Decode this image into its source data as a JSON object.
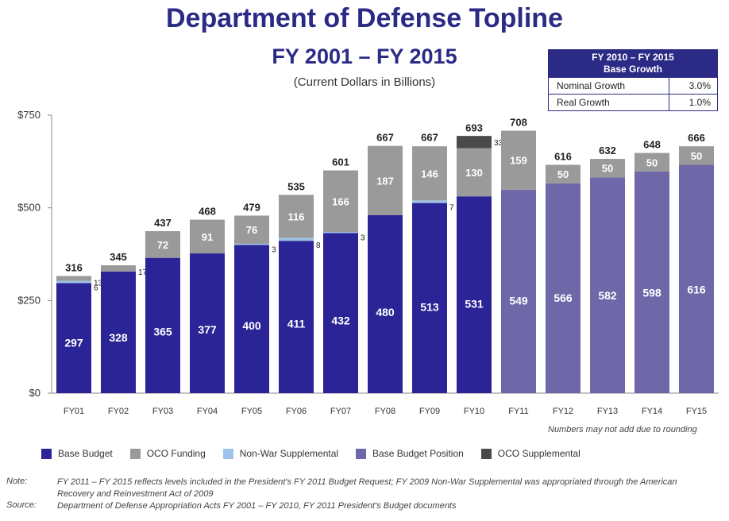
{
  "chart_data": {
    "type": "bar",
    "title": "Department of Defense Topline",
    "subtitle": "FY 2001 – FY 2015",
    "units": "(Current Dollars in Billions)",
    "categories": [
      "FY01",
      "FY02",
      "FY03",
      "FY04",
      "FY05",
      "FY06",
      "FY07",
      "FY08",
      "FY09",
      "FY10",
      "FY11",
      "FY12",
      "FY13",
      "FY14",
      "FY15"
    ],
    "ylim": [
      0,
      750
    ],
    "yticks": [
      "$0",
      "$250",
      "$500",
      "$750"
    ],
    "ytick_values": [
      0,
      250,
      500,
      750
    ],
    "stacked": true,
    "totals": [
      316,
      345,
      437,
      468,
      479,
      535,
      601,
      667,
      667,
      693,
      708,
      616,
      632,
      648,
      666
    ],
    "series": [
      {
        "name": "Base Budget",
        "color": "#2b2496",
        "values": [
          297,
          328,
          365,
          377,
          400,
          411,
          432,
          480,
          513,
          531,
          null,
          null,
          null,
          null,
          null
        ]
      },
      {
        "name": "Base Budget Position",
        "color": "#6e67a8",
        "values": [
          null,
          null,
          null,
          null,
          null,
          null,
          null,
          null,
          null,
          null,
          549,
          566,
          582,
          598,
          616
        ]
      },
      {
        "name": "Non-War Supplemental",
        "color": "#9fc3e8",
        "values": [
          6,
          null,
          null,
          null,
          3,
          8,
          3,
          null,
          7,
          null,
          null,
          null,
          null,
          null,
          null
        ]
      },
      {
        "name": "OCO Funding",
        "color": "#9a9a9a",
        "values": [
          13,
          17,
          72,
          91,
          76,
          116,
          166,
          187,
          146,
          130,
          159,
          50,
          50,
          50,
          50
        ]
      },
      {
        "name": "OCO Supplemental",
        "color": "#4a4a4a",
        "values": [
          null,
          null,
          null,
          null,
          null,
          null,
          null,
          null,
          null,
          33,
          null,
          null,
          null,
          null,
          null
        ]
      }
    ],
    "legend_position": "bottom",
    "grid": false,
    "annotation": "Numbers may not add due to rounding"
  },
  "growth_box": {
    "title_line1": "FY 2010 – FY 2015",
    "title_line2": "Base Growth",
    "rows": [
      {
        "label": "Nominal Growth",
        "value": "3.0%"
      },
      {
        "label": "Real Growth",
        "value": "1.0%"
      }
    ]
  },
  "legend": [
    {
      "label": "Base Budget",
      "color": "#2b2496"
    },
    {
      "label": "OCO Funding",
      "color": "#9a9a9a"
    },
    {
      "label": "Non-War Supplemental",
      "color": "#9fc3e8"
    },
    {
      "label": "Base Budget Position",
      "color": "#6e67a8"
    },
    {
      "label": "OCO Supplemental",
      "color": "#4a4a4a"
    }
  ],
  "notes": {
    "note_label": "Note:",
    "note_text": "FY 2011 – FY 2015 reflects levels included in the President's FY 2011 Budget Request; FY 2009 Non-War Supplemental was appropriated through the American Recovery and Reinvestment Act of 2009",
    "source_label": "Source:",
    "source_text": "Department of Defense Appropriation Acts FY 2001 – FY 2010, FY 2011 President's Budget documents"
  }
}
